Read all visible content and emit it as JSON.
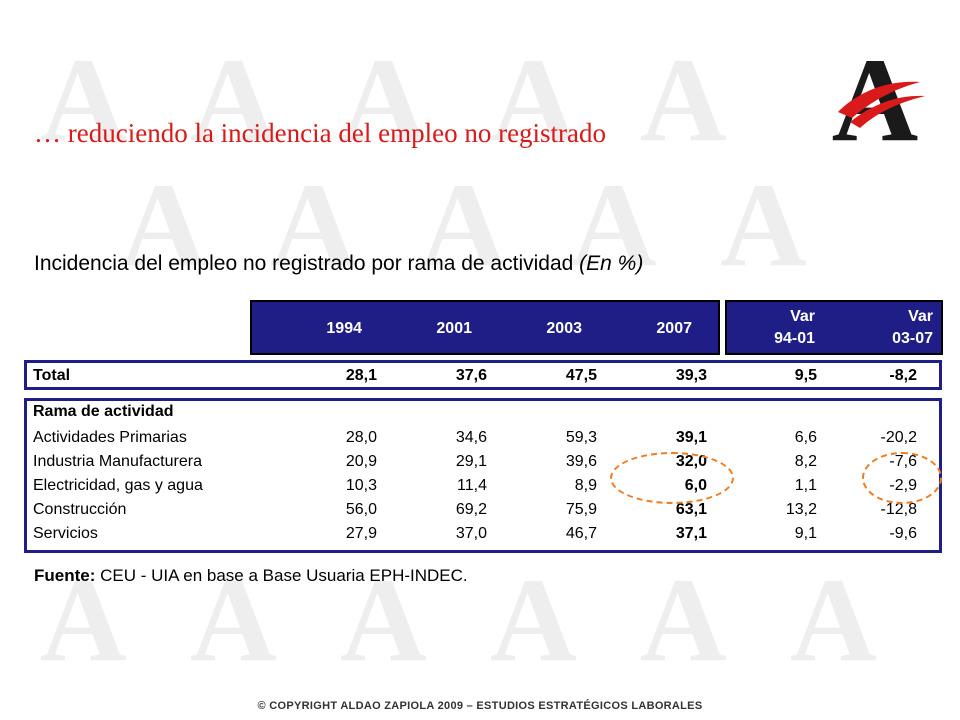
{
  "slide": {
    "title": "… reduciendo la incidencia del empleo no registrado",
    "footer": "© COPYRIGHT ALDAO ZAPIOLA 2009 – ESTUDIOS ESTRATÉGICOS LABORALES"
  },
  "logo": {
    "letter": "A",
    "colors": {
      "letter": "#1a1a1a",
      "accent": "#d81a1a"
    }
  },
  "watermark": {
    "glyph": "A",
    "color": "#eeeeee"
  },
  "table": {
    "caption": "Incidencia del empleo no registrado por rama de actividad",
    "caption_unit": "(En %)",
    "header": {
      "years": [
        "1994",
        "2001",
        "2003",
        "2007"
      ],
      "var1_line1": "Var",
      "var1_line2": "94-01",
      "var2_line1": "Var",
      "var2_line2": "03-07"
    },
    "total": {
      "label": "Total",
      "values": [
        "28,1",
        "37,6",
        "47,5",
        "39,3",
        "9,5",
        "-8,2"
      ]
    },
    "section_label": "Rama de actividad",
    "rows": [
      {
        "label": "Actividades Primarias",
        "values": [
          "28,0",
          "34,6",
          "59,3",
          "39,1",
          "6,6",
          "-20,2"
        ]
      },
      {
        "label": "Industria Manufacturera",
        "values": [
          "20,9",
          "29,1",
          "39,6",
          "32,0",
          "8,2",
          "-7,6"
        ]
      },
      {
        "label": "Electricidad, gas y agua",
        "values": [
          "10,3",
          "11,4",
          "8,9",
          "6,0",
          "1,1",
          "-2,9"
        ]
      },
      {
        "label": "Construcción",
        "values": [
          "56,0",
          "69,2",
          "75,9",
          "63,1",
          "13,2",
          "-12,8"
        ]
      },
      {
        "label": "Servicios",
        "values": [
          "27,9",
          "37,0",
          "46,7",
          "37,1",
          "9,1",
          "-9,6"
        ]
      }
    ],
    "highlight_color": "#ef7d22"
  },
  "source": {
    "label": "Fuente:",
    "text": "CEU - UIA  en base a Base Usuaria EPH-INDEC."
  },
  "colors": {
    "title": "#d81a1a",
    "header_bg": "#1e1e86",
    "border": "#1e1e86"
  }
}
